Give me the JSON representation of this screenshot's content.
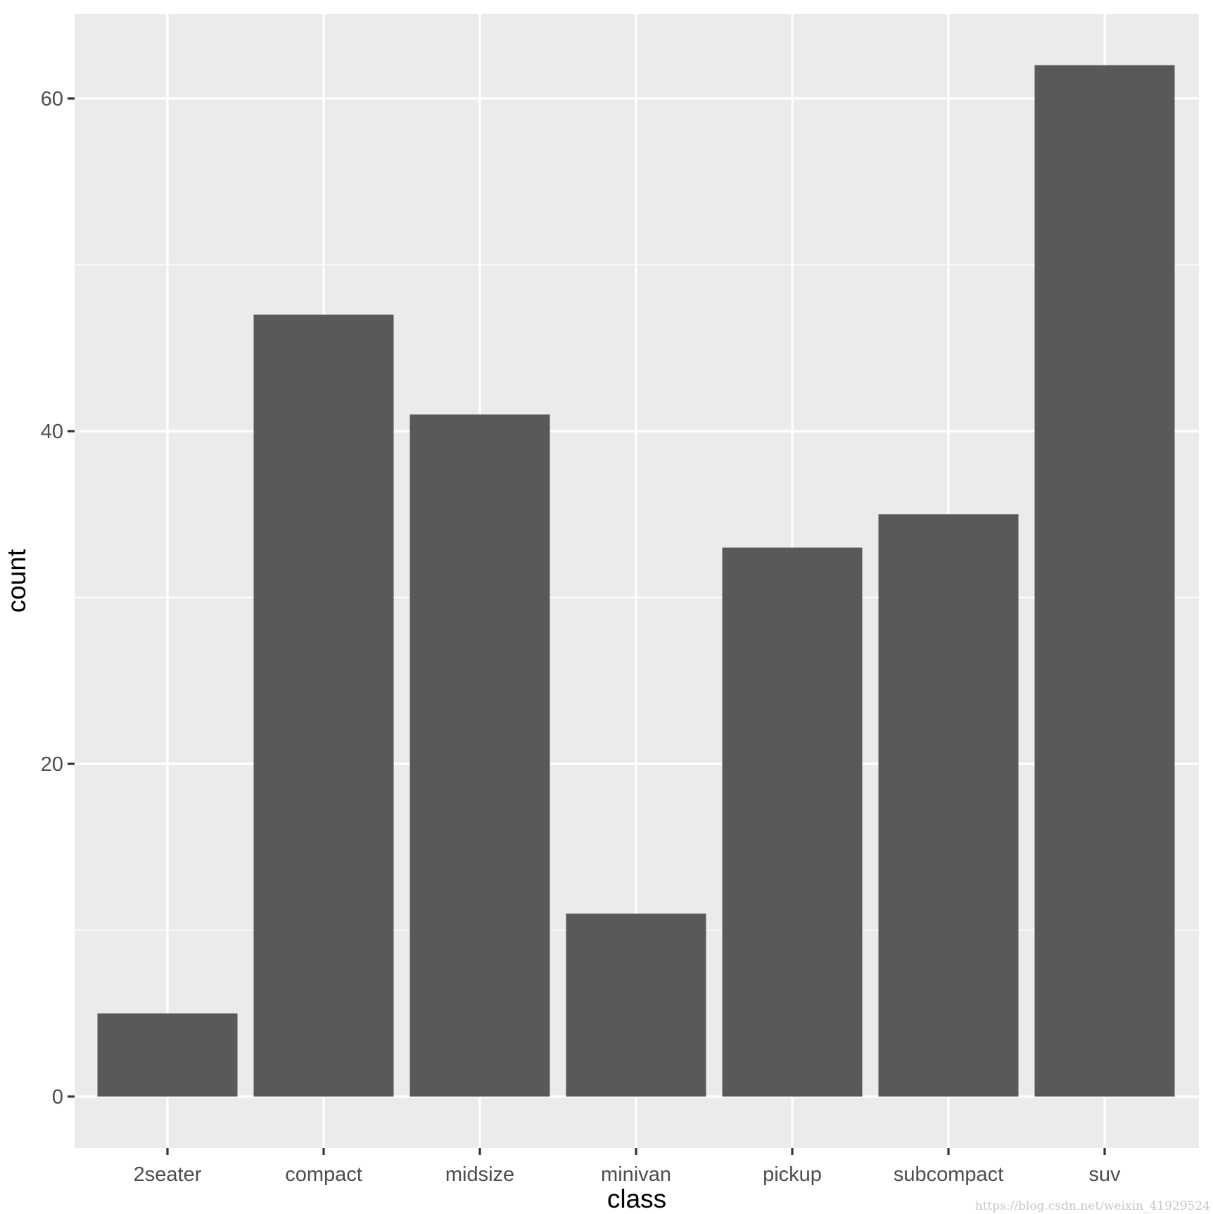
{
  "chart_data": {
    "type": "bar",
    "categories": [
      "2seater",
      "compact",
      "midsize",
      "minivan",
      "pickup",
      "subcompact",
      "suv"
    ],
    "values": [
      5,
      47,
      41,
      11,
      33,
      35,
      62
    ],
    "title": "",
    "xlabel": "class",
    "ylabel": "count",
    "ylim": [
      -3.05,
      65.1
    ],
    "yticks": [
      0,
      20,
      40,
      60
    ],
    "ytick_labels": [
      "0",
      "20",
      "40",
      "60"
    ],
    "grid": true,
    "colors": {
      "panel_background": "#ebebeb",
      "grid": "#ffffff",
      "bar_fill": "#595959",
      "tick_label": "#4d4d4d",
      "axis_title": "#000000"
    }
  },
  "watermark": "https://blog.csdn.net/weixin_41929524"
}
